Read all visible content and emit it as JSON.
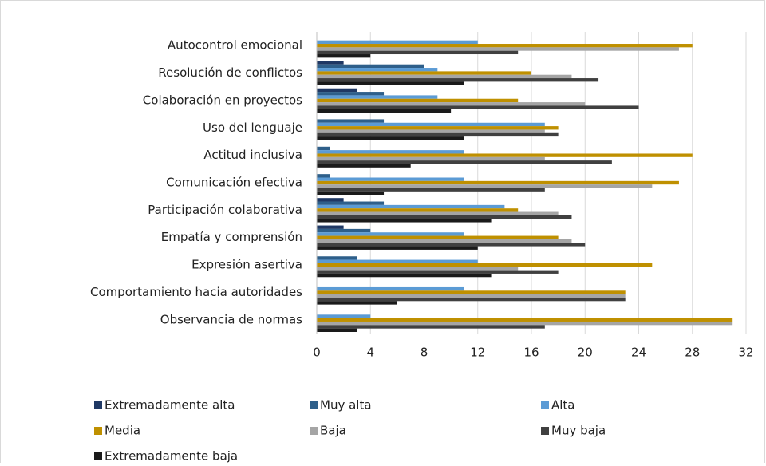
{
  "chart_data": {
    "type": "bar",
    "orientation": "horizontal",
    "categories": [
      "Autocontrol emocional",
      "Resolución de conflictos",
      "Colaboración en proyectos",
      "Uso del lenguaje",
      "Actitud inclusiva",
      "Comunicación efectiva",
      "Participación colaborativa",
      "Empatía y comprensión",
      "Expresión asertiva",
      "Comportamiento hacia autoridades",
      "Observancia de normas"
    ],
    "series": [
      {
        "name": "Extremadamente alta",
        "color": "#1f3864",
        "values": [
          0,
          2,
          3,
          0,
          0,
          0,
          2,
          2,
          0,
          0,
          0
        ]
      },
      {
        "name": "Muy alta",
        "color": "#2e5f8a",
        "values": [
          0,
          8,
          5,
          5,
          1,
          1,
          5,
          4,
          3,
          0,
          0
        ]
      },
      {
        "name": "Alta",
        "color": "#5b9bd5",
        "values": [
          12,
          9,
          9,
          17,
          11,
          11,
          14,
          11,
          12,
          11,
          4
        ]
      },
      {
        "name": "Media",
        "color": "#bf9000",
        "values": [
          28,
          16,
          15,
          18,
          28,
          27,
          15,
          18,
          25,
          23,
          31
        ]
      },
      {
        "name": "Baja",
        "color": "#a5a5a5",
        "values": [
          27,
          19,
          20,
          17,
          17,
          25,
          18,
          19,
          15,
          23,
          31
        ]
      },
      {
        "name": "Muy baja",
        "color": "#404040",
        "values": [
          15,
          21,
          24,
          18,
          22,
          17,
          19,
          20,
          18,
          23,
          17
        ]
      },
      {
        "name": "Extremadamente baja",
        "color": "#1a1a1a",
        "values": [
          4,
          11,
          10,
          11,
          7,
          5,
          13,
          12,
          13,
          6,
          3
        ]
      }
    ],
    "xlim": [
      0,
      32
    ],
    "xticks": [
      0,
      4,
      8,
      12,
      16,
      20,
      24,
      28,
      32
    ],
    "grid": true,
    "legend": "bottom"
  }
}
